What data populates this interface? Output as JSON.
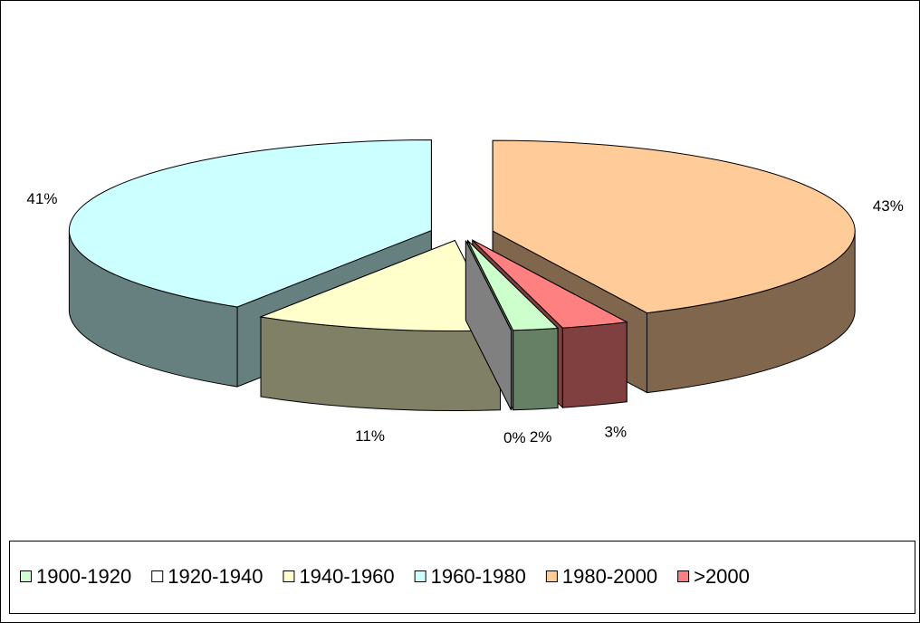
{
  "chart_data": {
    "type": "pie",
    "categories": [
      "1900-1920",
      "1920-1940",
      "1940-1960",
      "1960-1980",
      "1980-2000",
      ">2000"
    ],
    "values": [
      2,
      0,
      11,
      41,
      43,
      3
    ],
    "value_labels": [
      "2%",
      "0%",
      "11%",
      "41%",
      "43%",
      "3%"
    ],
    "colors": [
      "#ccffcc",
      "#ffffff",
      "#ffffcc",
      "#ccffff",
      "#ffcc99",
      "#ff8080"
    ],
    "legend": "bottom"
  }
}
